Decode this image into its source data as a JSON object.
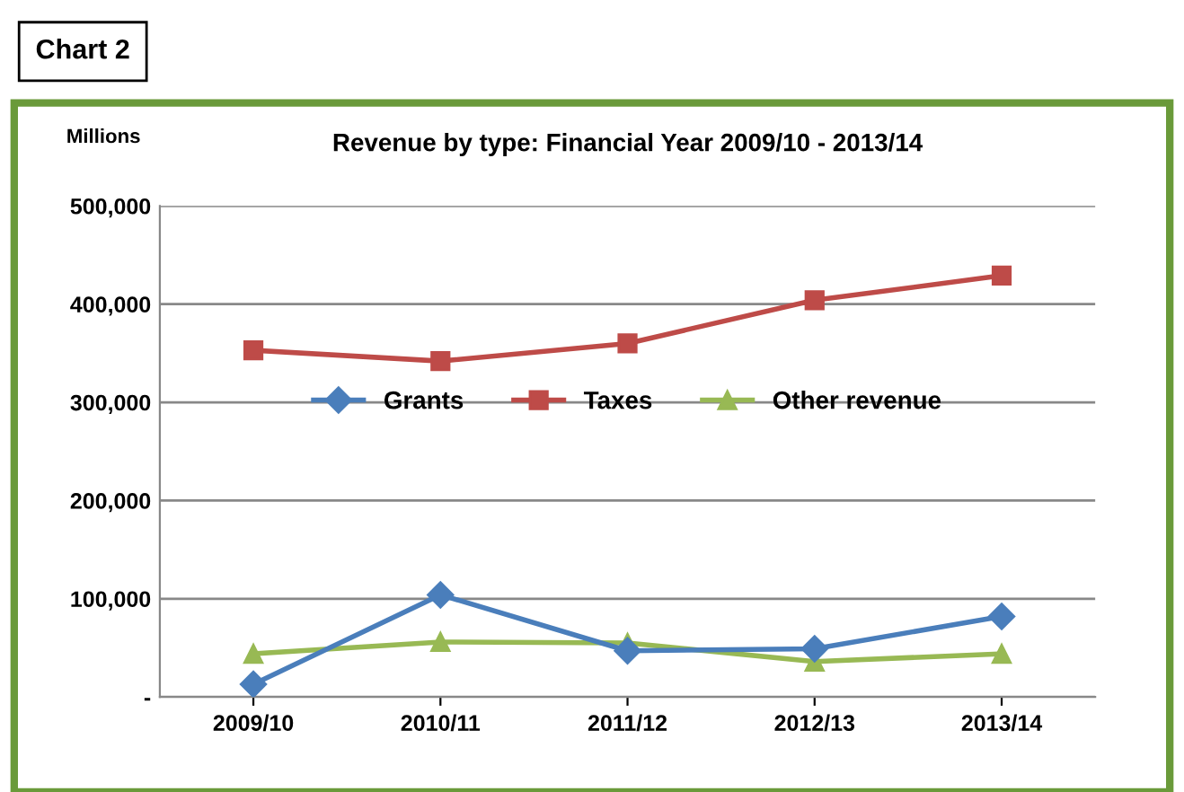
{
  "chart_data": {
    "type": "line",
    "title": "Revenue by type: Financial Year 2009/10 - 2013/14",
    "ylabel": "Millions",
    "annotations": [
      "Chart 2"
    ],
    "categories": [
      "2009/10",
      "2010/11",
      "2011/12",
      "2012/13",
      "2013/14"
    ],
    "series": [
      {
        "name": "Grants",
        "color": "#4a7ebb",
        "marker": "diamond",
        "values": [
          13000,
          104000,
          47000,
          49000,
          82000
        ]
      },
      {
        "name": "Taxes",
        "color": "#be4b48",
        "marker": "square",
        "values": [
          353000,
          342000,
          360000,
          404000,
          429000
        ]
      },
      {
        "name": "Other revenue",
        "color": "#98b954",
        "marker": "triangle",
        "values": [
          44000,
          56000,
          55000,
          36000,
          44000
        ]
      }
    ],
    "ylim": [
      0,
      500000
    ],
    "yticks": [
      {
        "value": 0,
        "label": "-"
      },
      {
        "value": 100000,
        "label": "100,000"
      },
      {
        "value": 200000,
        "label": "200,000"
      },
      {
        "value": 300000,
        "label": "300,000"
      },
      {
        "value": 400000,
        "label": "400,000"
      },
      {
        "value": 500000,
        "label": "500,000"
      }
    ],
    "grid": "y",
    "legend": "center",
    "line_style": "solid"
  }
}
